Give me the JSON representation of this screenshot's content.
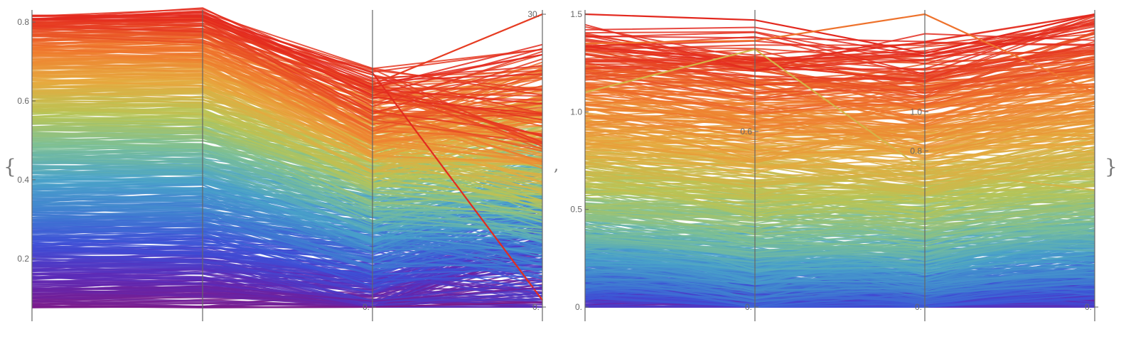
{
  "wrapper": {
    "open_brace": "{",
    "separator": ",",
    "close_brace": "}"
  },
  "colors": {
    "palette": [
      "#7b1a8a",
      "#5b2bb8",
      "#3d4fd6",
      "#3f7fd0",
      "#4aa3c8",
      "#7cbf95",
      "#b8c455",
      "#e6a93e",
      "#ef7a2e",
      "#e3281e"
    ],
    "axis": "#666666"
  },
  "chart_data": [
    {
      "type": "parallel-coordinates",
      "title": "",
      "line_count": 600,
      "axes": [
        {
          "tick_labels": [
            "0.2",
            "0.4",
            "0.6",
            "0.8"
          ],
          "ticks": [
            0.2,
            0.4,
            0.6,
            0.8
          ],
          "range": [
            0.077,
            0.82
          ]
        },
        {
          "tick_labels": [],
          "ticks": [],
          "range": [
            0.077,
            0.82
          ]
        },
        {
          "tick_labels": [
            "0."
          ],
          "ticks": [
            0
          ],
          "range": [
            0,
            1
          ]
        },
        {
          "tick_labels": [
            "0.",
            "30."
          ],
          "ticks": [
            0,
            30
          ],
          "range": [
            0,
            30
          ]
        }
      ],
      "extreme_lines": [
        [
          0.817,
          0.817,
          0.8,
          0.7
        ],
        [
          0.8,
          0.79,
          0.76,
          30
        ],
        [
          0.077,
          0.077,
          0.0,
          0.5
        ],
        [
          0.12,
          0.13,
          0.02,
          2
        ]
      ]
    },
    {
      "type": "parallel-coordinates",
      "title": "",
      "line_count": 700,
      "axes": [
        {
          "tick_labels": [
            "0.",
            "0.5",
            "1.0",
            "1.5"
          ],
          "ticks": [
            0,
            0.5,
            1.0,
            1.5
          ],
          "range": [
            0,
            1.5
          ]
        },
        {
          "tick_labels": [
            "0.",
            "0.6"
          ],
          "ticks": [
            0,
            0.6
          ],
          "range": [
            0,
            1.0
          ]
        },
        {
          "tick_labels": [
            "0.",
            "0.8",
            "1.0"
          ],
          "ticks": [
            0,
            0.8,
            1.0
          ],
          "range": [
            0,
            1.5
          ]
        },
        {
          "tick_labels": [
            "0."
          ],
          "ticks": [
            0
          ],
          "range": [
            0,
            1.5
          ]
        }
      ],
      "extreme_lines": [
        [
          1.5,
          0.98,
          1.3,
          1.5
        ],
        [
          1.35,
          0.91,
          1.5,
          1.1
        ],
        [
          1.1,
          0.88,
          0.7,
          0.6
        ]
      ]
    }
  ]
}
